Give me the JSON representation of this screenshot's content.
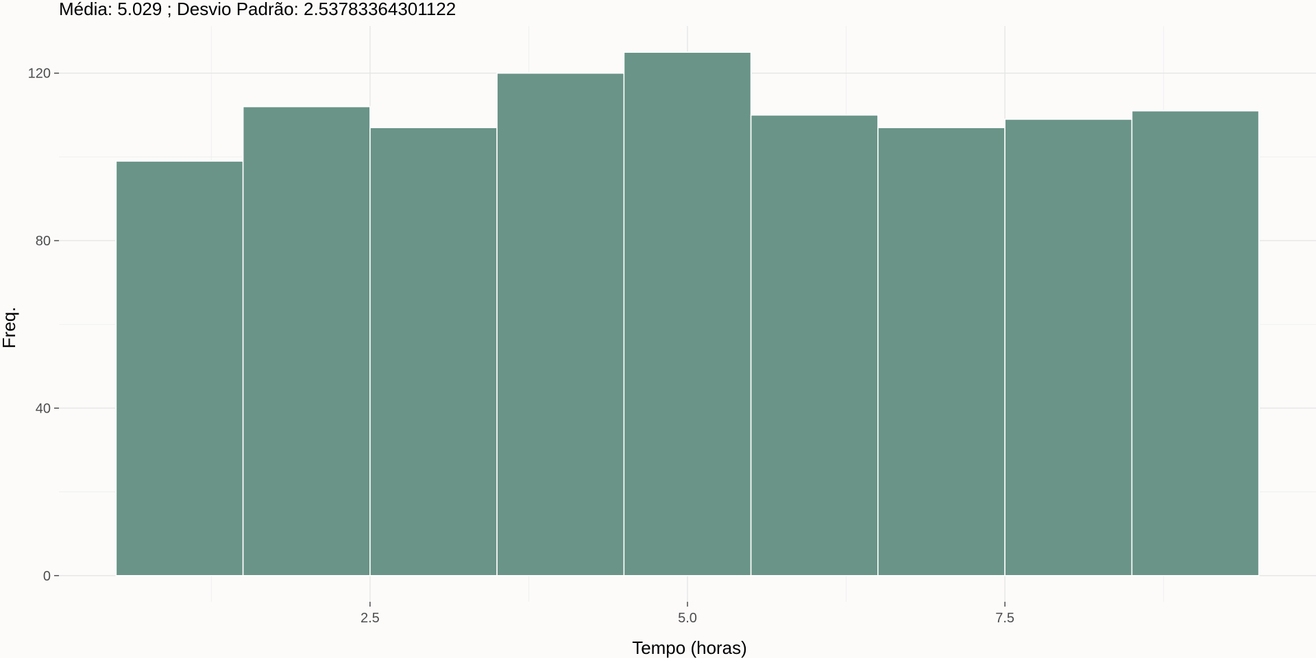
{
  "chart_data": {
    "type": "bar",
    "title": "Média:  5.029 ; Desvio Padrão:  2.53783364301122",
    "xlabel": "Tempo (horas)",
    "ylabel": "Freq.",
    "bin_width": 1,
    "bins": [
      {
        "x0": 0.5,
        "x1": 1.5,
        "count": 99
      },
      {
        "x0": 1.5,
        "x1": 2.5,
        "count": 112
      },
      {
        "x0": 2.5,
        "x1": 3.5,
        "count": 107
      },
      {
        "x0": 3.5,
        "x1": 4.5,
        "count": 120
      },
      {
        "x0": 4.5,
        "x1": 5.5,
        "count": 125
      },
      {
        "x0": 5.5,
        "x1": 6.5,
        "count": 110
      },
      {
        "x0": 6.5,
        "x1": 7.5,
        "count": 107
      },
      {
        "x0": 7.5,
        "x1": 8.5,
        "count": 109
      },
      {
        "x0": 8.5,
        "x1": 9.5,
        "count": 111
      }
    ],
    "xlim": [
      0.05,
      9.95
    ],
    "ylim": [
      -6.25,
      131.25
    ],
    "x_ticks": [
      2.5,
      5.0,
      7.5
    ],
    "x_tick_labels": [
      "2.5",
      "5.0",
      "7.5"
    ],
    "x_minor_ticks": [
      1.25,
      3.75,
      6.25,
      8.75
    ],
    "y_ticks": [
      0,
      40,
      80,
      120
    ],
    "y_tick_labels": [
      "0",
      "40",
      "80",
      "120"
    ],
    "y_minor_ticks": [
      20,
      60,
      100
    ],
    "grid": true,
    "legend": "none",
    "colors": {
      "bar_fill": "#6a9488",
      "bar_edge": "#ffffff",
      "background": "#fcfbfa"
    }
  }
}
